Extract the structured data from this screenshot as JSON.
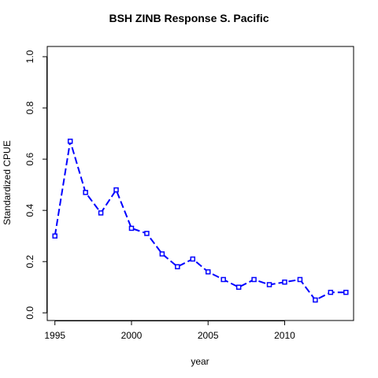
{
  "chart_data": {
    "type": "line",
    "title": "BSH ZINB Response S. Pacific",
    "xlabel": "year",
    "ylabel": "Standardized CPUE",
    "xlim": [
      1994.5,
      2014.5
    ],
    "ylim": [
      -0.03,
      1.04
    ],
    "x_ticks": [
      1995,
      2000,
      2005,
      2010
    ],
    "y_ticks": [
      0.0,
      0.2,
      0.4,
      0.6,
      0.8,
      1.0
    ],
    "x_tick_labels": [
      "1995",
      "2000",
      "2005",
      "2010"
    ],
    "y_tick_labels": [
      "0.0",
      "0.2",
      "0.4",
      "0.6",
      "0.8",
      "1.0"
    ],
    "grid": false,
    "legend": "none",
    "series_color": "#0000FF",
    "series": [
      {
        "x": [
          1995,
          1996,
          1997,
          1998,
          1999,
          2000,
          2001,
          2002,
          2003,
          2004,
          2005,
          2006,
          2007,
          2008,
          2009,
          2010,
          2011,
          2012,
          2013,
          2014
        ],
        "values": [
          0.3,
          0.67,
          0.47,
          0.39,
          0.48,
          0.33,
          0.31,
          0.23,
          0.18,
          0.21,
          0.16,
          0.13,
          0.1,
          0.13,
          0.11,
          0.12,
          0.13,
          0.05,
          0.08,
          0.08
        ],
        "line_style": "dashed"
      }
    ]
  }
}
